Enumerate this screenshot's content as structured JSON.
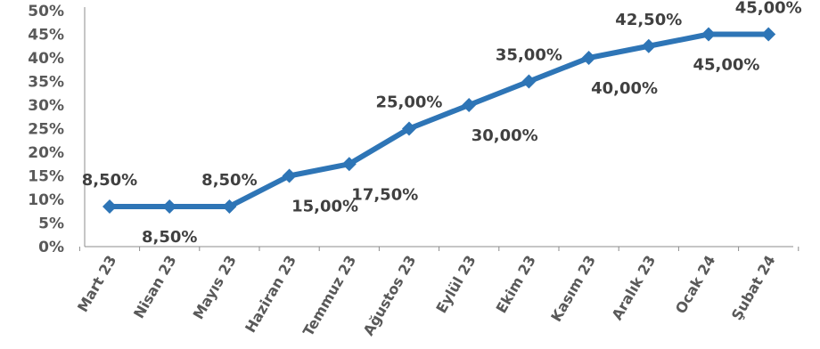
{
  "chart_data": {
    "type": "line",
    "title": "",
    "xlabel": "",
    "ylabel": "",
    "categories": [
      "Mart 23",
      "Nisan 23",
      "Mayıs 23",
      "Haziran 23",
      "Temmuz 23",
      "Ağustos 23",
      "Eylül 23",
      "Ekim 23",
      "Kasım 23",
      "Aralık 23",
      "Ocak 24",
      "Şubat 24"
    ],
    "series": [
      {
        "values": [
          8.5,
          8.5,
          8.5,
          15.0,
          17.5,
          25.0,
          30.0,
          35.0,
          40.0,
          42.5,
          45.0,
          45.0
        ],
        "data_labels": [
          "8,50%",
          "8,50%",
          "8,50%",
          "15,00%",
          "17,50%",
          "25,00%",
          "30,00%",
          "35,00%",
          "40,00%",
          "42,50%",
          "45,00%",
          "45,00%"
        ],
        "color": "#2e75b6",
        "marker": "diamond"
      }
    ],
    "yticks": [
      "0%",
      "5%",
      "10%",
      "15%",
      "20%",
      "25%",
      "30%",
      "35%",
      "40%",
      "45%",
      "50%"
    ],
    "ylim": [
      0,
      50
    ],
    "grid": false,
    "legend": "none"
  }
}
